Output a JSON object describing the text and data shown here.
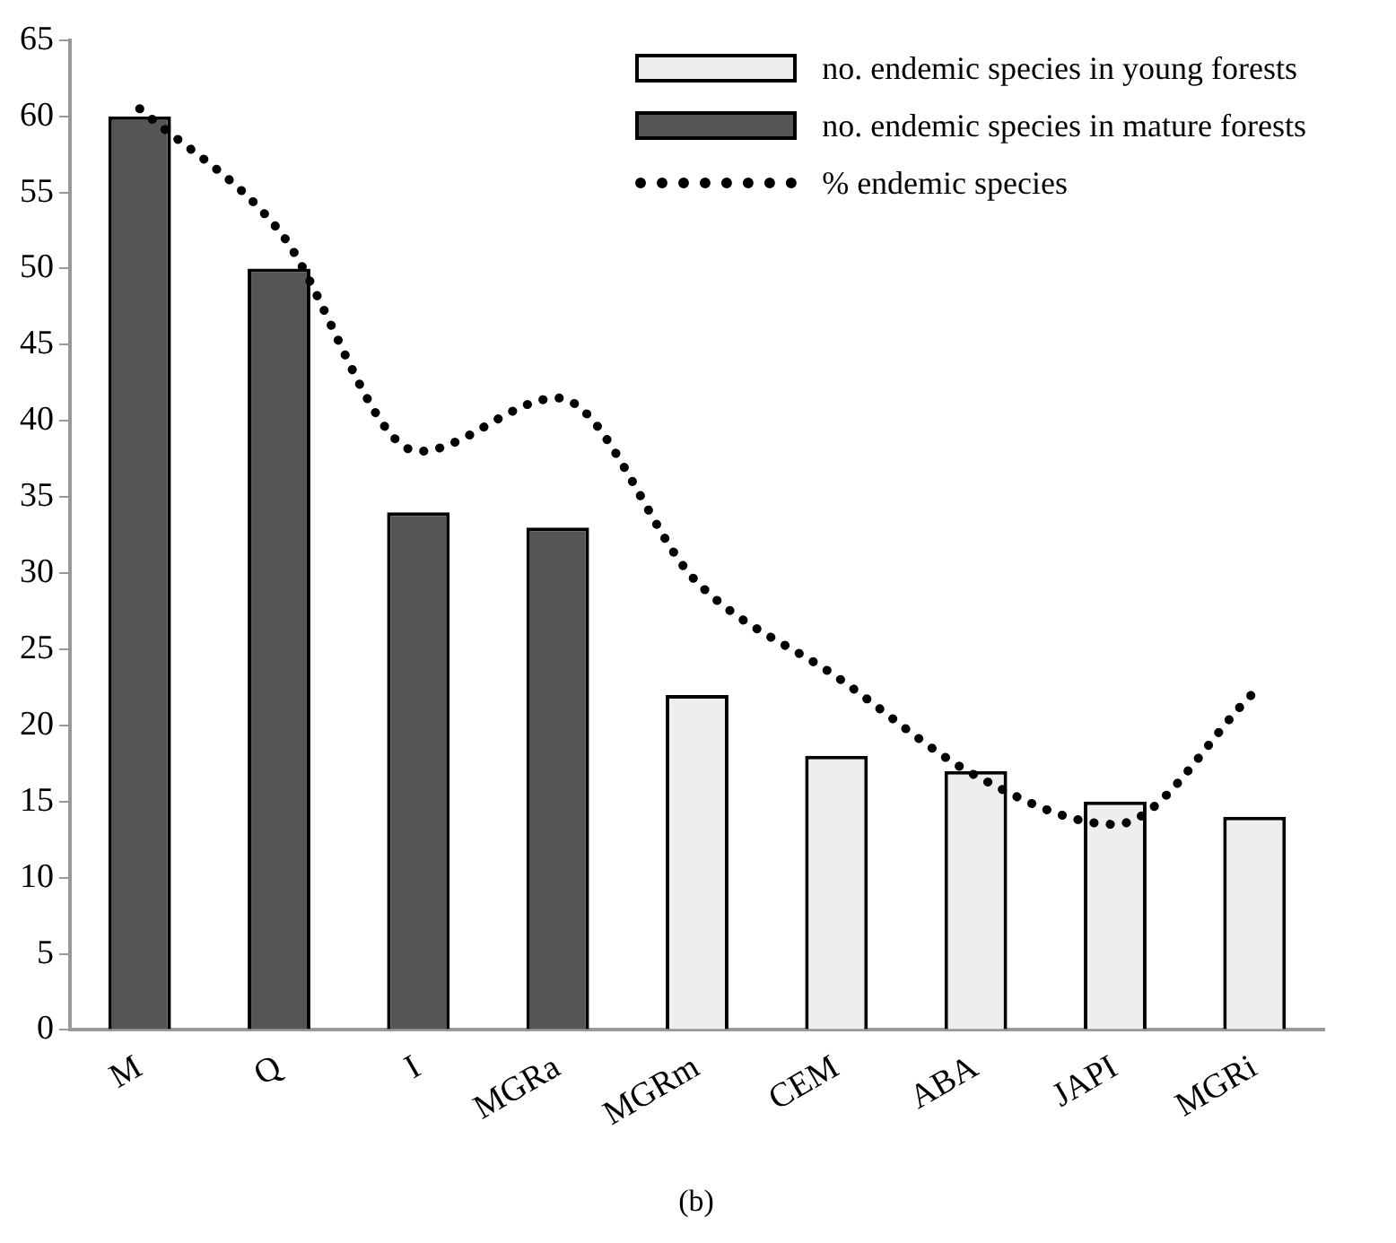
{
  "chart_data": {
    "type": "bar",
    "categories": [
      "M",
      "Q",
      "I",
      "MGRa",
      "MGRm",
      "CEM",
      "ABA",
      "JAPI",
      "MGRi"
    ],
    "series": [
      {
        "name": "no. endemic species in young forests",
        "color": "#eeeeee",
        "values": [
          null,
          null,
          null,
          null,
          22,
          18,
          17,
          15,
          14
        ]
      },
      {
        "name": "no. endemic species in mature forests",
        "color": "#555555",
        "values": [
          60,
          50,
          34,
          33,
          null,
          null,
          null,
          null,
          null
        ]
      },
      {
        "name": "% endemic species",
        "type": "line",
        "color": "#000000",
        "line_style": "dotted",
        "marker": "none",
        "values": [
          60.5,
          52.5,
          38,
          41.5,
          29.4,
          23.2,
          16.7,
          13.5,
          22.2
        ]
      }
    ],
    "ylim": [
      0,
      65
    ],
    "yticks": [
      0,
      5,
      10,
      15,
      20,
      25,
      30,
      35,
      40,
      45,
      50,
      55,
      60,
      65
    ],
    "grid": false,
    "legend": "top right",
    "annotations": [
      "(b)"
    ]
  }
}
